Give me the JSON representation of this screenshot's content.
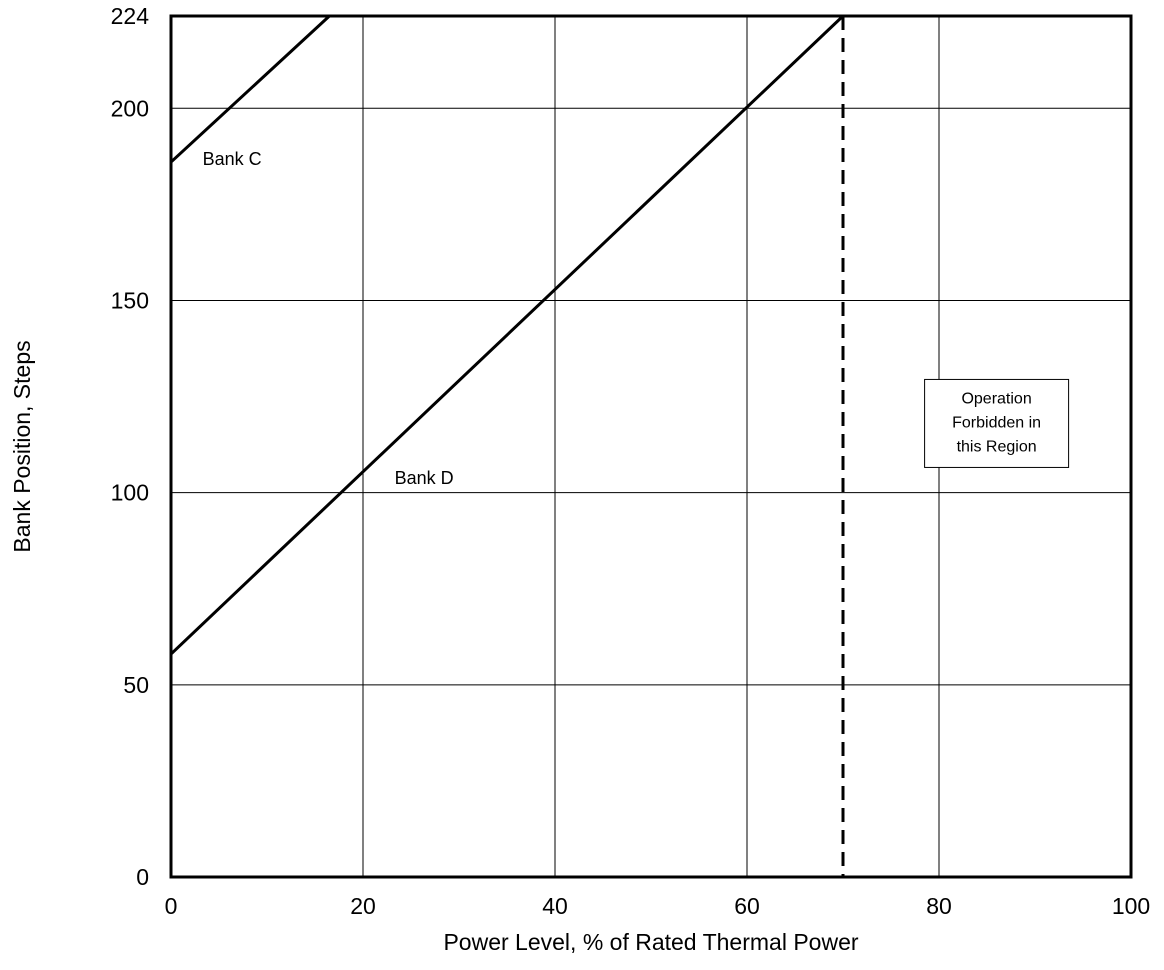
{
  "chart_data": {
    "type": "line",
    "xlabel": "Power Level, % of Rated Thermal Power",
    "ylabel": "Bank Position, Steps",
    "xlim": [
      0,
      100
    ],
    "ylim": [
      0,
      224
    ],
    "x_ticks": [
      0,
      20,
      40,
      60,
      80,
      100
    ],
    "y_ticks": [
      0,
      50,
      100,
      150,
      200,
      224
    ],
    "grid": true,
    "series": [
      {
        "name": "Bank C",
        "x": [
          0,
          16.5
        ],
        "y": [
          186,
          224
        ]
      },
      {
        "name": "Bank D",
        "x": [
          0,
          70
        ],
        "y": [
          58,
          224
        ]
      }
    ],
    "vertical_limit": {
      "x": 70,
      "style": "dashed"
    },
    "region_annotation": {
      "lines": [
        "Operation",
        "Forbidden in",
        "this Region"
      ],
      "x": 86,
      "y": 118
    }
  }
}
